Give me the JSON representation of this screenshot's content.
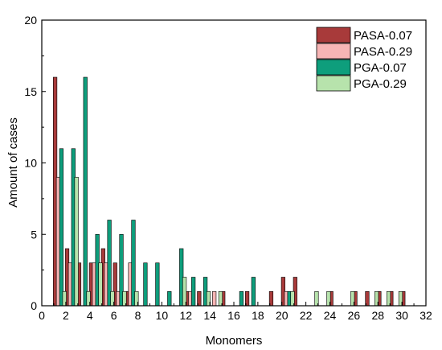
{
  "chart_data": {
    "type": "bar",
    "xlabel": "Monomers",
    "ylabel": "Amount of cases",
    "xlim": [
      0,
      32
    ],
    "ylim": [
      0,
      20
    ],
    "xticks": [
      "0",
      "2",
      "4",
      "6",
      "8",
      "10",
      "12",
      "14",
      "16",
      "18",
      "20",
      "22",
      "24",
      "26",
      "28",
      "30",
      "32"
    ],
    "yticks": [
      "0",
      "5",
      "10",
      "15",
      "20"
    ],
    "legend_position": "top-right",
    "grid": false,
    "series": [
      {
        "name": "PASA-0.07",
        "color": "#a83a3a",
        "points": [
          [
            1,
            16
          ],
          [
            2,
            4
          ],
          [
            3,
            3
          ],
          [
            4,
            3
          ],
          [
            5,
            4
          ],
          [
            6,
            3
          ],
          [
            7,
            1
          ],
          [
            12,
            1
          ],
          [
            13,
            1
          ],
          [
            15,
            1
          ],
          [
            17,
            1
          ],
          [
            19,
            1
          ],
          [
            20,
            2
          ],
          [
            21,
            2
          ],
          [
            24,
            1
          ],
          [
            26,
            1
          ],
          [
            27,
            1
          ],
          [
            28,
            1
          ],
          [
            29,
            1
          ],
          [
            30,
            1
          ]
        ]
      },
      {
        "name": "PASA-0.29",
        "color": "#f7b5b5",
        "points": [
          [
            1,
            9
          ],
          [
            2,
            3
          ],
          [
            4,
            3
          ],
          [
            5,
            3
          ],
          [
            6,
            1
          ],
          [
            7,
            3
          ],
          [
            12,
            1
          ],
          [
            14,
            1
          ],
          [
            20,
            1
          ]
        ]
      },
      {
        "name": "PGA-0.07",
        "color": "#0e9e7c",
        "points": [
          [
            1,
            11
          ],
          [
            2,
            11
          ],
          [
            3,
            16
          ],
          [
            4,
            5
          ],
          [
            5,
            6
          ],
          [
            6,
            5
          ],
          [
            7,
            6
          ],
          [
            8,
            3
          ],
          [
            9,
            3
          ],
          [
            10,
            1
          ],
          [
            11,
            4
          ],
          [
            12,
            2
          ],
          [
            13,
            2
          ],
          [
            16,
            1
          ],
          [
            17,
            2
          ],
          [
            20,
            1
          ]
        ]
      },
      {
        "name": "PGA-0.29",
        "color": "#b7e3ac",
        "points": [
          [
            1,
            1
          ],
          [
            2,
            9
          ],
          [
            3,
            1
          ],
          [
            4,
            3
          ],
          [
            5,
            1
          ],
          [
            6,
            1
          ],
          [
            7,
            1
          ],
          [
            11,
            2
          ],
          [
            13,
            1
          ],
          [
            14,
            1
          ],
          [
            20,
            1
          ],
          [
            22,
            1
          ],
          [
            23,
            1
          ],
          [
            25,
            1
          ],
          [
            27,
            1
          ],
          [
            28,
            1
          ],
          [
            29,
            1
          ]
        ]
      }
    ]
  }
}
